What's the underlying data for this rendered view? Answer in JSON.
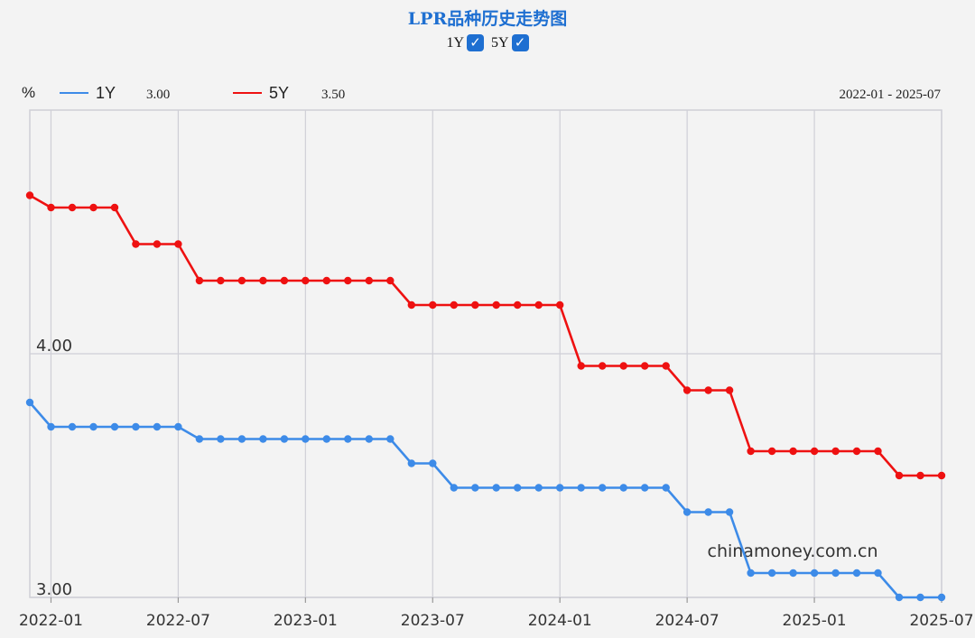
{
  "header": {
    "title": "LPR品种历史走势图",
    "toggles": [
      {
        "label": "1Y",
        "checked": true
      },
      {
        "label": "5Y",
        "checked": true
      }
    ],
    "checkmark": "✓"
  },
  "legend": {
    "unit": "%",
    "items": [
      {
        "name": "1Y",
        "value": "3.00",
        "color": "#3d8be8"
      },
      {
        "name": "5Y",
        "value": "3.50",
        "color": "#ee1111"
      }
    ],
    "range": "2022-01 - 2025-07"
  },
  "watermark": "chinamoney.com.cn",
  "chart_data": {
    "type": "line",
    "title": "LPR品种历史走势图",
    "xlabel": "",
    "ylabel": "%",
    "x_ticks": [
      "2022-01",
      "2022-07",
      "2023-01",
      "2023-07",
      "2024-01",
      "2024-07",
      "2025-01",
      "2025-07"
    ],
    "y_ticks": [
      "3.00",
      "4.00"
    ],
    "xlim": [
      "2021-12",
      "2025-07"
    ],
    "ylim": [
      3.0,
      5.0
    ],
    "grid": true,
    "legend_position": "top-left",
    "x": [
      "2021-12",
      "2022-01",
      "2022-02",
      "2022-03",
      "2022-04",
      "2022-05",
      "2022-06",
      "2022-07",
      "2022-08",
      "2022-09",
      "2022-10",
      "2022-11",
      "2022-12",
      "2023-01",
      "2023-02",
      "2023-03",
      "2023-04",
      "2023-05",
      "2023-06",
      "2023-07",
      "2023-08",
      "2023-09",
      "2023-10",
      "2023-11",
      "2023-12",
      "2024-01",
      "2024-02",
      "2024-03",
      "2024-04",
      "2024-05",
      "2024-06",
      "2024-07",
      "2024-08",
      "2024-09",
      "2024-10",
      "2024-11",
      "2024-12",
      "2025-01",
      "2025-02",
      "2025-03",
      "2025-04",
      "2025-05",
      "2025-06",
      "2025-07"
    ],
    "series": [
      {
        "name": "1Y",
        "color": "#3d8be8",
        "values": [
          3.8,
          3.7,
          3.7,
          3.7,
          3.7,
          3.7,
          3.7,
          3.7,
          3.65,
          3.65,
          3.65,
          3.65,
          3.65,
          3.65,
          3.65,
          3.65,
          3.65,
          3.65,
          3.55,
          3.55,
          3.45,
          3.45,
          3.45,
          3.45,
          3.45,
          3.45,
          3.45,
          3.45,
          3.45,
          3.45,
          3.45,
          3.35,
          3.35,
          3.35,
          3.1,
          3.1,
          3.1,
          3.1,
          3.1,
          3.1,
          3.1,
          3.0,
          3.0,
          3.0
        ]
      },
      {
        "name": "5Y",
        "color": "#ee1111",
        "values": [
          4.65,
          4.6,
          4.6,
          4.6,
          4.6,
          4.45,
          4.45,
          4.45,
          4.3,
          4.3,
          4.3,
          4.3,
          4.3,
          4.3,
          4.3,
          4.3,
          4.3,
          4.3,
          4.2,
          4.2,
          4.2,
          4.2,
          4.2,
          4.2,
          4.2,
          4.2,
          3.95,
          3.95,
          3.95,
          3.95,
          3.95,
          3.85,
          3.85,
          3.85,
          3.6,
          3.6,
          3.6,
          3.6,
          3.6,
          3.6,
          3.6,
          3.5,
          3.5,
          3.5
        ]
      }
    ]
  }
}
